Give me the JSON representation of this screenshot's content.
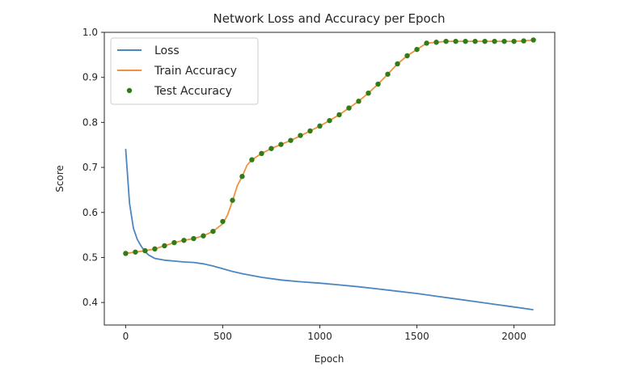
{
  "chart_data": {
    "type": "line",
    "title": "Network Loss and Accuracy per Epoch",
    "xlabel": "Epoch",
    "ylabel": "Score",
    "xlim": [
      -110,
      2210
    ],
    "ylim": [
      0.35,
      1.0
    ],
    "xticks": [
      0,
      500,
      1000,
      1500,
      2000
    ],
    "yticks": [
      0.4,
      0.5,
      0.6,
      0.7,
      0.8,
      0.9,
      1.0
    ],
    "grid": false,
    "legend_position": "upper-left",
    "series": [
      {
        "name": "Loss",
        "style": "line",
        "color": "#4c86c0",
        "x": [
          0,
          20,
          40,
          60,
          80,
          100,
          120,
          150,
          200,
          250,
          300,
          350,
          400,
          450,
          500,
          550,
          600,
          700,
          800,
          900,
          1000,
          1100,
          1200,
          1300,
          1400,
          1500,
          1600,
          1700,
          1800,
          1900,
          2000,
          2100
        ],
        "y": [
          0.741,
          0.62,
          0.565,
          0.54,
          0.525,
          0.513,
          0.505,
          0.498,
          0.494,
          0.492,
          0.49,
          0.489,
          0.486,
          0.481,
          0.475,
          0.469,
          0.464,
          0.456,
          0.45,
          0.446,
          0.443,
          0.439,
          0.435,
          0.43,
          0.425,
          0.42,
          0.414,
          0.408,
          0.402,
          0.396,
          0.39,
          0.384
        ]
      },
      {
        "name": "Train Accuracy",
        "style": "line",
        "color": "#f2913d",
        "x": [
          0,
          50,
          100,
          150,
          200,
          250,
          300,
          350,
          400,
          450,
          500,
          525,
          550,
          575,
          600,
          625,
          650,
          700,
          750,
          800,
          850,
          900,
          950,
          1000,
          1050,
          1100,
          1150,
          1200,
          1250,
          1300,
          1350,
          1400,
          1450,
          1500,
          1550,
          1600,
          1650,
          1700,
          1750,
          1800,
          1850,
          1900,
          1950,
          2000,
          2050,
          2100
        ],
        "y": [
          0.509,
          0.512,
          0.515,
          0.519,
          0.526,
          0.533,
          0.538,
          0.542,
          0.548,
          0.558,
          0.575,
          0.595,
          0.625,
          0.66,
          0.68,
          0.705,
          0.717,
          0.731,
          0.742,
          0.751,
          0.76,
          0.77,
          0.781,
          0.792,
          0.804,
          0.817,
          0.832,
          0.847,
          0.865,
          0.885,
          0.907,
          0.93,
          0.948,
          0.962,
          0.976,
          0.978,
          0.98,
          0.98,
          0.98,
          0.98,
          0.98,
          0.98,
          0.98,
          0.98,
          0.981,
          0.983
        ]
      },
      {
        "name": "Test Accuracy",
        "style": "scatter",
        "color": "#2e7d17",
        "x": [
          0,
          50,
          100,
          150,
          200,
          250,
          300,
          350,
          400,
          450,
          500,
          550,
          600,
          650,
          700,
          750,
          800,
          850,
          900,
          950,
          1000,
          1050,
          1100,
          1150,
          1200,
          1250,
          1300,
          1350,
          1400,
          1450,
          1500,
          1550,
          1600,
          1650,
          1700,
          1750,
          1800,
          1850,
          1900,
          1950,
          2000,
          2050,
          2100
        ],
        "y": [
          0.509,
          0.512,
          0.515,
          0.519,
          0.526,
          0.533,
          0.538,
          0.542,
          0.548,
          0.558,
          0.58,
          0.627,
          0.68,
          0.717,
          0.731,
          0.742,
          0.751,
          0.76,
          0.771,
          0.781,
          0.792,
          0.804,
          0.817,
          0.832,
          0.847,
          0.865,
          0.885,
          0.907,
          0.93,
          0.948,
          0.962,
          0.976,
          0.978,
          0.98,
          0.98,
          0.98,
          0.98,
          0.98,
          0.98,
          0.98,
          0.98,
          0.981,
          0.983
        ]
      }
    ]
  }
}
